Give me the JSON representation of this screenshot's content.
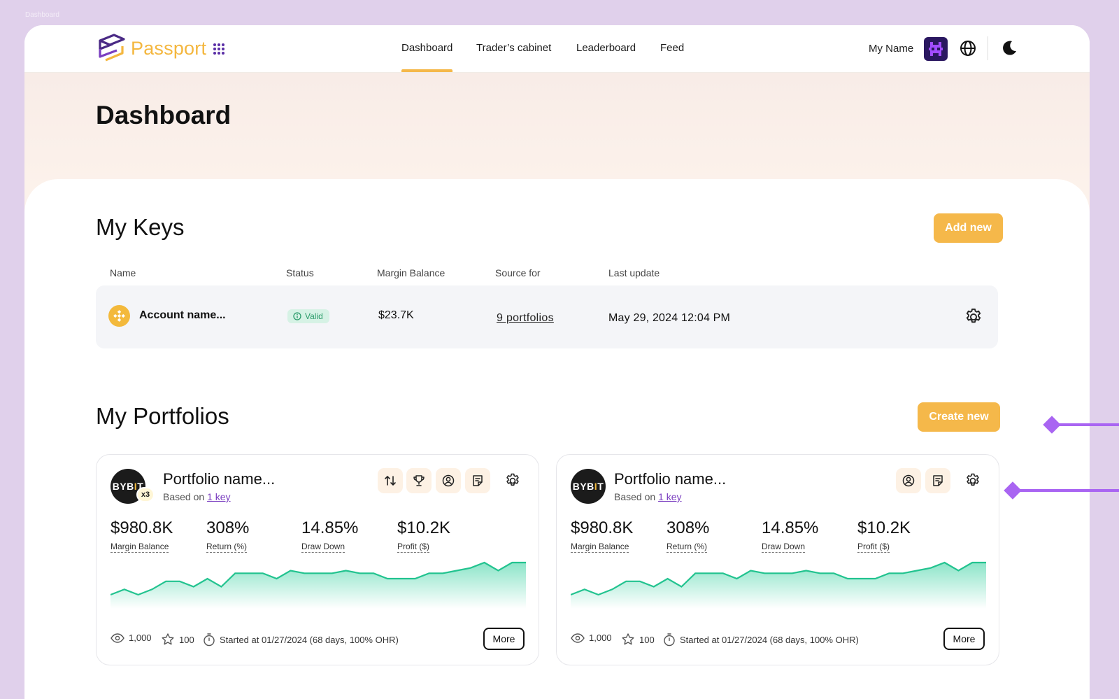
{
  "frame_label": "Dashboard",
  "brand": {
    "name": "Passport",
    "accent": "#f5b84a",
    "purple": "#7a3ec0"
  },
  "nav": {
    "links": [
      "Dashboard",
      "Trader’s cabinet",
      "Leaderboard",
      "Feed"
    ],
    "active": "Dashboard",
    "user_name": "My Name"
  },
  "page_title": "Dashboard",
  "keys": {
    "title": "My Keys",
    "add_label": "Add new",
    "columns": [
      "Name",
      "Status",
      "Margin Balance",
      "Source for",
      "Last update"
    ],
    "rows": [
      {
        "exchange_icon": "binance-icon",
        "name": "Account name...",
        "status": "Valid",
        "margin_balance": "$23.7K",
        "source_for": "9 portfolios",
        "last_update": "May 29, 2024 12:04 PM"
      }
    ]
  },
  "portfolios": {
    "title": "My Portfolios",
    "create_label": "Create new",
    "cards": [
      {
        "exchange_logo": "BYBIT",
        "multiplier": "x3",
        "name": "Portfolio name...",
        "based_prefix": "Based on",
        "based_link": "1 key",
        "metrics": [
          {
            "value": "$980.8K",
            "label": "Margin Balance"
          },
          {
            "value": "308%",
            "label": "Return (%)"
          },
          {
            "value": "14.85%",
            "label": "Draw Down"
          },
          {
            "value": "$10.2K",
            "label": "Profit ($)"
          }
        ],
        "views": "1,000",
        "stars": "100",
        "started": "Started at 01/27/2024 (68 days, 100% OHR)",
        "more_label": "More"
      },
      {
        "exchange_logo": "BYBIT",
        "name": "Portfolio name...",
        "based_prefix": "Based on",
        "based_link": "1 key",
        "metrics": [
          {
            "value": "$980.8K",
            "label": "Margin Balance"
          },
          {
            "value": "308%",
            "label": "Return (%)"
          },
          {
            "value": "14.85%",
            "label": "Draw Down"
          },
          {
            "value": "$10.2K",
            "label": "Profit ($)"
          }
        ],
        "views": "1,000",
        "stars": "100",
        "started": "Started at 01/27/2024 (68 days, 100% OHR)",
        "more_label": "More"
      }
    ]
  },
  "sparkline_values": [
    2,
    4,
    2,
    4,
    7,
    7,
    5,
    8,
    5,
    10,
    10,
    10,
    8,
    11,
    10,
    10,
    10,
    11,
    10,
    10,
    8,
    8,
    8,
    10,
    10,
    11,
    12,
    14,
    11,
    14,
    14
  ]
}
